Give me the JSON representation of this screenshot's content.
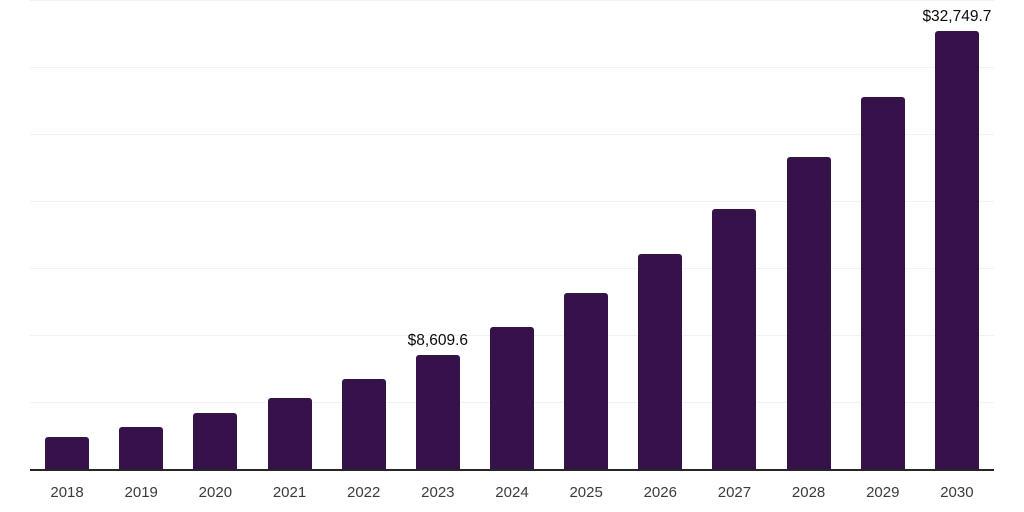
{
  "chart_data": {
    "type": "bar",
    "title": "",
    "xlabel": "",
    "ylabel": "",
    "categories": [
      "2018",
      "2019",
      "2020",
      "2021",
      "2022",
      "2023",
      "2024",
      "2025",
      "2026",
      "2027",
      "2028",
      "2029",
      "2030"
    ],
    "values": [
      2450,
      3180,
      4230,
      5390,
      6790,
      8609.6,
      10650,
      13200,
      16110,
      19470,
      23320,
      27770,
      32749.7
    ],
    "point_labels": {
      "2023": "$8,609.6",
      "2030": "$32,749.7"
    },
    "ylim": [
      0,
      35000
    ],
    "gridline_interval": 5000,
    "grid": true,
    "legend": "none",
    "y_tick_labels_visible": false,
    "bar_color": "#36124B",
    "axis_color": "#262626",
    "grid_color": "#F2F2F4",
    "tick_label_color": "#3B3B3B",
    "value_label_color": "#0A0A0A"
  }
}
